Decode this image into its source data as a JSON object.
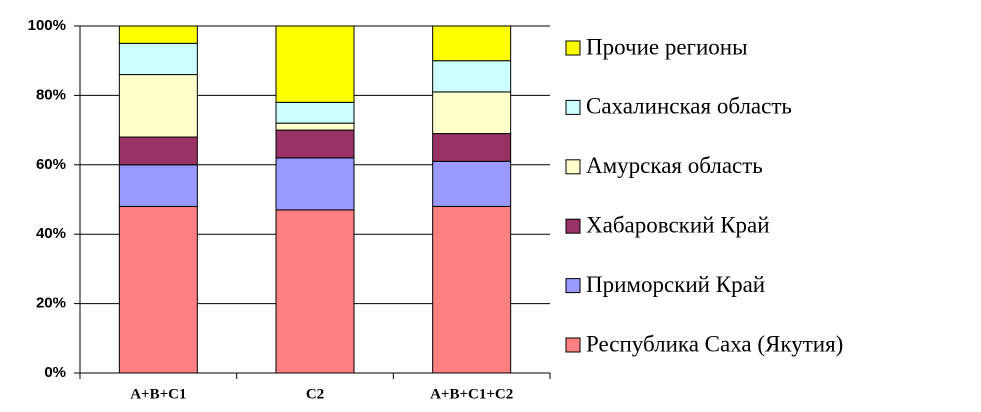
{
  "chart_data": {
    "type": "stacked_bar_percent",
    "categories": [
      "A+B+C1",
      "C2",
      "A+B+C1+C2"
    ],
    "series": [
      {
        "name": "Республика Саха (Якутия)",
        "color": "#ff8080",
        "values": [
          48,
          47,
          48
        ]
      },
      {
        "name": "Приморский Край",
        "color": "#9999ff",
        "values": [
          12,
          15,
          13
        ]
      },
      {
        "name": "Хабаровский Край",
        "color": "#993366",
        "values": [
          8,
          8,
          8
        ]
      },
      {
        "name": "Амурская область",
        "color": "#ffffcc",
        "values": [
          18,
          2,
          12
        ]
      },
      {
        "name": "Сахалинская область",
        "color": "#ccffff",
        "values": [
          9,
          6,
          9
        ]
      },
      {
        "name": "Прочие регионы",
        "color": "#ffff00",
        "values": [
          5,
          22,
          10
        ]
      }
    ],
    "ylim": [
      0,
      100
    ],
    "yticks": [
      {
        "value": 0,
        "label": "0%"
      },
      {
        "value": 20,
        "label": "20%"
      },
      {
        "value": 40,
        "label": "40%"
      },
      {
        "value": 60,
        "label": "60%"
      },
      {
        "value": 80,
        "label": "80%"
      },
      {
        "value": 100,
        "label": "100%"
      }
    ],
    "grid": true,
    "legend": "right"
  }
}
